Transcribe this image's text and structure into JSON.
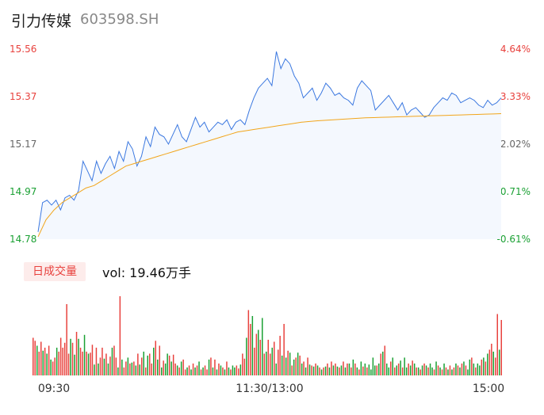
{
  "header": {
    "name": "引力传媒",
    "code": "603598.SH"
  },
  "colors": {
    "price_line": "#3b78e0",
    "avg_line": "#f2a51a",
    "area_fill": "#f4f8fe",
    "up": "#e8413d",
    "down": "#1aa033",
    "neutral": "#666666"
  },
  "volume_panel": {
    "badge": "日成交量",
    "summary": "vol: 19.46万手"
  },
  "chart_data": [
    {
      "type": "line",
      "title": "",
      "y_price_ticks": [
        "15.56",
        "15.37",
        "15.17",
        "14.97",
        "14.78"
      ],
      "y_pct_ticks": [
        "4.64%",
        "3.33%",
        "2.02%",
        "0.71%",
        "-0.61%"
      ],
      "ylim": [
        14.78,
        15.56
      ],
      "x_ticks": [
        "09:30",
        "11:30/13:00",
        "15:00"
      ],
      "series": [
        {
          "key": "price",
          "values": [
            14.81,
            14.93,
            14.94,
            14.92,
            14.94,
            14.9,
            14.95,
            14.96,
            14.94,
            14.98,
            15.1,
            15.06,
            15.02,
            15.1,
            15.05,
            15.09,
            15.12,
            15.07,
            15.14,
            15.1,
            15.18,
            15.15,
            15.08,
            15.12,
            15.2,
            15.16,
            15.24,
            15.21,
            15.2,
            15.17,
            15.21,
            15.25,
            15.2,
            15.18,
            15.23,
            15.28,
            15.24,
            15.26,
            15.22,
            15.24,
            15.26,
            15.25,
            15.27,
            15.23,
            15.26,
            15.27,
            15.25,
            15.31,
            15.36,
            15.4,
            15.42,
            15.44,
            15.41,
            15.55,
            15.48,
            15.52,
            15.5,
            15.45,
            15.42,
            15.36,
            15.38,
            15.4,
            15.35,
            15.38,
            15.42,
            15.4,
            15.37,
            15.38,
            15.36,
            15.35,
            15.33,
            15.4,
            15.43,
            15.41,
            15.39,
            15.31,
            15.33,
            15.35,
            15.37,
            15.34,
            15.31,
            15.34,
            15.29,
            15.31,
            15.32,
            15.3,
            15.28,
            15.29,
            15.32,
            15.34,
            15.36,
            15.35,
            15.38,
            15.37,
            15.34,
            15.35,
            15.36,
            15.35,
            15.33,
            15.32,
            15.35,
            15.33,
            15.34,
            15.36
          ]
        },
        {
          "key": "avg",
          "values": [
            14.79,
            14.86,
            14.9,
            14.93,
            14.95,
            14.97,
            14.99,
            15.0,
            15.02,
            15.04,
            15.06,
            15.08,
            15.09,
            15.1,
            15.11,
            15.12,
            15.13,
            15.14,
            15.15,
            15.16,
            15.17,
            15.18,
            15.19,
            15.2,
            15.21,
            15.22,
            15.225,
            15.23,
            15.235,
            15.24,
            15.245,
            15.25,
            15.255,
            15.26,
            15.263,
            15.266,
            15.268,
            15.27,
            15.272,
            15.274,
            15.276,
            15.278,
            15.279,
            15.28,
            15.281,
            15.282,
            15.283,
            15.284,
            15.285,
            15.286,
            15.287,
            15.288,
            15.289,
            15.29,
            15.291,
            15.292,
            15.293,
            15.294,
            15.295
          ]
        }
      ]
    },
    {
      "type": "bar",
      "title": "",
      "volumes": [
        38,
        35,
        30,
        24,
        34,
        25,
        28,
        22,
        30,
        16,
        14,
        18,
        28,
        24,
        38,
        28,
        33,
        72,
        22,
        37,
        33,
        21,
        44,
        37,
        28,
        24,
        41,
        24,
        22,
        23,
        31,
        11,
        28,
        12,
        18,
        28,
        17,
        22,
        12,
        19,
        28,
        30,
        18,
        8,
        80,
        16,
        8,
        14,
        18,
        12,
        13,
        14,
        10,
        22,
        11,
        18,
        24,
        8,
        20,
        22,
        12,
        28,
        35,
        16,
        30,
        8,
        15,
        12,
        22,
        20,
        14,
        21,
        12,
        10,
        8,
        14,
        16,
        6,
        8,
        10,
        6,
        12,
        8,
        10,
        14,
        6,
        8,
        10,
        6,
        16,
        18,
        8,
        16,
        6,
        12,
        10,
        8,
        6,
        14,
        8,
        6,
        10,
        8,
        10,
        7,
        11,
        22,
        17,
        38,
        66,
        52,
        60,
        28,
        42,
        46,
        36,
        58,
        22,
        24,
        36,
        22,
        28,
        34,
        12,
        26,
        40,
        20,
        52,
        18,
        25,
        23,
        10,
        16,
        18,
        23,
        20,
        12,
        14,
        8,
        18,
        11,
        10,
        9,
        12,
        10,
        8,
        6,
        8,
        9,
        12,
        8,
        14,
        10,
        12,
        9,
        8,
        10,
        14,
        8,
        12,
        12,
        8,
        16,
        12,
        8,
        6,
        14,
        9,
        12,
        8,
        11,
        6,
        18,
        10,
        10,
        12,
        22,
        24,
        30,
        12,
        8,
        14,
        18,
        8,
        10,
        12,
        15,
        8,
        18,
        8,
        12,
        10,
        15,
        12,
        8,
        8,
        6,
        10,
        12,
        10,
        8,
        12,
        8,
        6,
        14,
        10,
        8,
        6,
        12,
        8,
        6,
        10,
        6,
        8,
        12,
        10,
        8,
        12,
        14,
        10,
        6,
        16,
        18,
        12,
        8,
        12,
        10,
        16,
        18,
        14,
        22,
        26,
        32,
        24,
        18,
        62,
        26,
        56
      ],
      "colors": [
        "up",
        "up",
        "down",
        "up",
        "up",
        "down",
        "up",
        "down",
        "up",
        "down",
        "up",
        "up",
        "down",
        "up",
        "up",
        "up",
        "up",
        "up",
        "up",
        "down",
        "up",
        "down",
        "up",
        "down",
        "up",
        "up",
        "down",
        "up",
        "down",
        "up",
        "up",
        "down",
        "up",
        "down",
        "up",
        "up",
        "down",
        "up",
        "down",
        "up",
        "down",
        "up",
        "up",
        "down",
        "up",
        "down",
        "up",
        "up",
        "down",
        "up",
        "down",
        "up",
        "down",
        "up",
        "down",
        "up",
        "down",
        "up",
        "down",
        "up",
        "up",
        "down",
        "up",
        "down",
        "up",
        "down",
        "up",
        "down",
        "down",
        "up",
        "down",
        "up",
        "up",
        "down",
        "up",
        "down",
        "up",
        "up",
        "down",
        "up",
        "down",
        "up",
        "down",
        "up",
        "down",
        "up",
        "down",
        "up",
        "up",
        "down",
        "up",
        "down",
        "up",
        "down",
        "up",
        "down",
        "up",
        "down",
        "up",
        "down",
        "up",
        "down",
        "down",
        "up",
        "up",
        "down",
        "up",
        "up",
        "down",
        "up",
        "up",
        "down",
        "up",
        "up",
        "down",
        "up",
        "down",
        "up",
        "down",
        "up",
        "up",
        "down",
        "up",
        "down",
        "up",
        "up",
        "down",
        "up",
        "down",
        "up",
        "down",
        "up",
        "down",
        "up",
        "down",
        "up",
        "down",
        "up",
        "down",
        "up",
        "down",
        "up",
        "down",
        "up",
        "down",
        "up",
        "down",
        "up",
        "down",
        "up",
        "down",
        "up",
        "down",
        "up",
        "down",
        "up",
        "down",
        "up",
        "down",
        "up",
        "down",
        "up",
        "down",
        "up",
        "down",
        "up",
        "down",
        "up",
        "down",
        "up",
        "down",
        "down",
        "down",
        "down",
        "up",
        "down",
        "up",
        "down",
        "up",
        "down",
        "down",
        "up",
        "down",
        "up",
        "down",
        "up",
        "down",
        "up",
        "down",
        "down",
        "up",
        "down",
        "up",
        "down",
        "up",
        "down",
        "up",
        "down",
        "up",
        "down",
        "up",
        "down",
        "down",
        "up",
        "down",
        "up",
        "down",
        "up",
        "down",
        "up",
        "down",
        "up",
        "down",
        "up",
        "down",
        "up",
        "down",
        "up",
        "down",
        "up",
        "down",
        "down",
        "up",
        "down",
        "up",
        "down",
        "down",
        "up",
        "down",
        "up",
        "down",
        "up",
        "up",
        "down",
        "up",
        "up",
        "down",
        "up",
        "up"
      ]
    }
  ]
}
